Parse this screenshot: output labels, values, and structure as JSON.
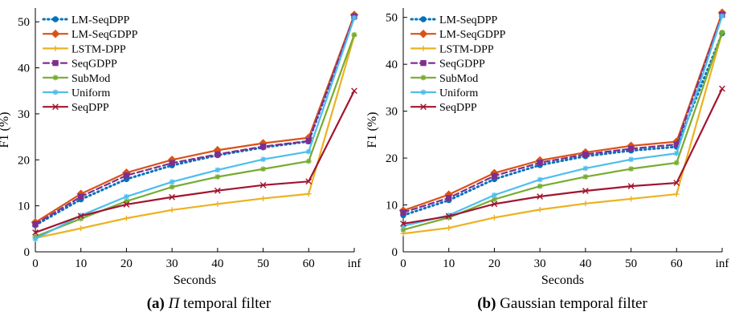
{
  "chart_data": [
    {
      "type": "line",
      "xlabel": "Seconds",
      "ylabel": "F1 (%)",
      "categories": [
        "0",
        "10",
        "20",
        "30",
        "40",
        "50",
        "60",
        "inf"
      ],
      "ylim": [
        0,
        53
      ],
      "yticks": [
        0,
        10,
        20,
        30,
        40,
        50
      ],
      "legend": "top-left",
      "caption": {
        "label": "(a)",
        "symbol": "Π",
        "text": "temporal filter"
      },
      "series": [
        {
          "name": "LM-SeqDPP",
          "color": "#0072BD",
          "style": "dotted",
          "marker": "circle",
          "values": [
            5.8,
            11.4,
            15.8,
            18.8,
            21.0,
            22.7,
            24.0,
            51.0
          ]
        },
        {
          "name": "LM-SeqGDPP",
          "color": "#D95319",
          "style": "solid",
          "marker": "diamond",
          "values": [
            6.4,
            12.6,
            17.2,
            20.0,
            22.1,
            23.6,
            24.8,
            51.5
          ]
        },
        {
          "name": "LSTM-DPP",
          "color": "#EDB120",
          "style": "solid",
          "marker": "plus",
          "values": [
            3.0,
            5.1,
            7.3,
            9.1,
            10.4,
            11.6,
            12.6,
            47.0
          ]
        },
        {
          "name": "SeqGDPP",
          "color": "#7E2F8E",
          "style": "dashed",
          "marker": "square",
          "values": [
            6.0,
            12.0,
            16.6,
            19.3,
            21.2,
            22.9,
            24.1,
            51.2
          ]
        },
        {
          "name": "SubMod",
          "color": "#77AC30",
          "style": "solid",
          "marker": "star",
          "values": [
            3.3,
            7.2,
            11.0,
            14.1,
            16.3,
            18.0,
            19.7,
            47.2
          ]
        },
        {
          "name": "Uniform",
          "color": "#4DBEEE",
          "style": "solid",
          "marker": "star",
          "values": [
            2.8,
            7.9,
            12.0,
            15.2,
            17.8,
            20.1,
            21.8,
            50.9
          ]
        },
        {
          "name": "SeqDPP",
          "color": "#A2142F",
          "style": "solid",
          "marker": "x",
          "values": [
            4.2,
            7.8,
            10.3,
            11.9,
            13.3,
            14.5,
            15.3,
            35.0
          ]
        }
      ]
    },
    {
      "type": "line",
      "xlabel": "Seconds",
      "ylabel": "F1 (%)",
      "categories": [
        "0",
        "10",
        "20",
        "30",
        "40",
        "50",
        "60",
        "inf"
      ],
      "ylim": [
        0,
        52
      ],
      "yticks": [
        0,
        10,
        20,
        30,
        40,
        50
      ],
      "legend": "top-left",
      "caption": {
        "label": "(b)",
        "symbol": "",
        "text": "Gaussian temporal filter"
      },
      "series": [
        {
          "name": "LM-SeqDPP",
          "color": "#0072BD",
          "style": "dotted",
          "marker": "circle",
          "values": [
            7.8,
            11.0,
            15.5,
            18.5,
            20.4,
            21.6,
            22.4,
            46.6
          ]
        },
        {
          "name": "LM-SeqGDPP",
          "color": "#D95319",
          "style": "solid",
          "marker": "diamond",
          "values": [
            8.8,
            12.2,
            16.8,
            19.5,
            21.2,
            22.6,
            23.5,
            51.0
          ]
        },
        {
          "name": "LSTM-DPP",
          "color": "#EDB120",
          "style": "solid",
          "marker": "plus",
          "values": [
            3.9,
            5.1,
            7.3,
            9.0,
            10.3,
            11.3,
            12.3,
            46.8
          ]
        },
        {
          "name": "SeqGDPP",
          "color": "#7E2F8E",
          "style": "dashed",
          "marker": "square",
          "values": [
            8.4,
            11.5,
            16.2,
            19.0,
            20.8,
            22.0,
            22.9,
            50.6
          ]
        },
        {
          "name": "SubMod",
          "color": "#77AC30",
          "style": "solid",
          "marker": "star",
          "values": [
            4.7,
            7.3,
            11.2,
            14.0,
            16.0,
            17.7,
            19.0,
            46.8
          ]
        },
        {
          "name": "Uniform",
          "color": "#4DBEEE",
          "style": "solid",
          "marker": "star",
          "values": [
            5.5,
            7.8,
            12.1,
            15.4,
            17.8,
            19.7,
            21.0,
            50.3
          ]
        },
        {
          "name": "SeqDPP",
          "color": "#A2142F",
          "style": "solid",
          "marker": "x",
          "values": [
            6.0,
            7.6,
            10.2,
            11.8,
            13.0,
            14.0,
            14.7,
            34.8
          ]
        }
      ]
    }
  ]
}
